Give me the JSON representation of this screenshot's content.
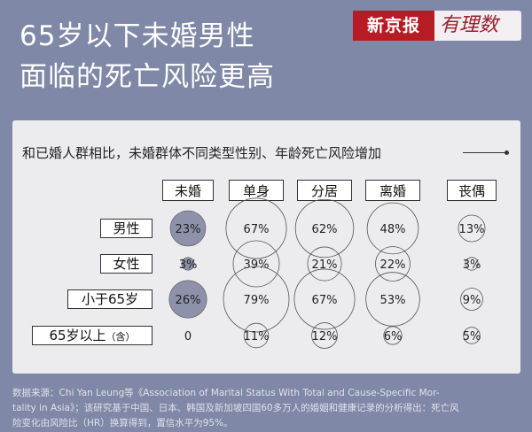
{
  "header": {
    "title_line1": "65岁以下未婚男性",
    "title_line2": "面临的死亡风险更高",
    "brand_name": "新京报",
    "brand_column": "有理数"
  },
  "subtitle": "和已婚人群相比，未婚群体不同类型性别、年龄死亡风险增加",
  "colors": {
    "background": "#7f88a6",
    "card": "#ececef",
    "brand_red": "#b71c24",
    "filled_circle": "#8d92aa",
    "outline_circle": "#555555"
  },
  "chart_data": {
    "type": "table",
    "columns": [
      "未婚",
      "单身",
      "分居",
      "离婚",
      "丧偶"
    ],
    "rows": [
      {
        "label": "男性",
        "label_suffix": "",
        "values": [
          23,
          67,
          62,
          48,
          13
        ],
        "labels": [
          "23%",
          "67%",
          "62%",
          "48%",
          "13%"
        ]
      },
      {
        "label": "女性",
        "label_suffix": "",
        "values": [
          3,
          39,
          21,
          22,
          3
        ],
        "labels": [
          "3%",
          "39%",
          "21%",
          "22%",
          "3%"
        ]
      },
      {
        "label": "小于65岁",
        "label_suffix": "",
        "values": [
          26,
          79,
          67,
          53,
          9
        ],
        "labels": [
          "26%",
          "79%",
          "67%",
          "53%",
          "9%"
        ]
      },
      {
        "label": "65岁以上",
        "label_suffix": "（含）",
        "values": [
          0,
          11,
          12,
          6,
          5
        ],
        "labels": [
          "0",
          "11%",
          "12%",
          "6%",
          "5%"
        ]
      }
    ],
    "filled_column": "未婚"
  },
  "footnote": {
    "line1": "数据来源：Chi Yan Leung等《Association of Marital Status With Total and Cause-Specific Mor-",
    "line2": "tality in Asia》；该研究基于中国、日本、韩国及新加坡四国60多万人的婚姻和健康记录的分析得出：死亡风",
    "line3": "险变化由风险比（HR）换算得到，置信水平为95%。"
  }
}
